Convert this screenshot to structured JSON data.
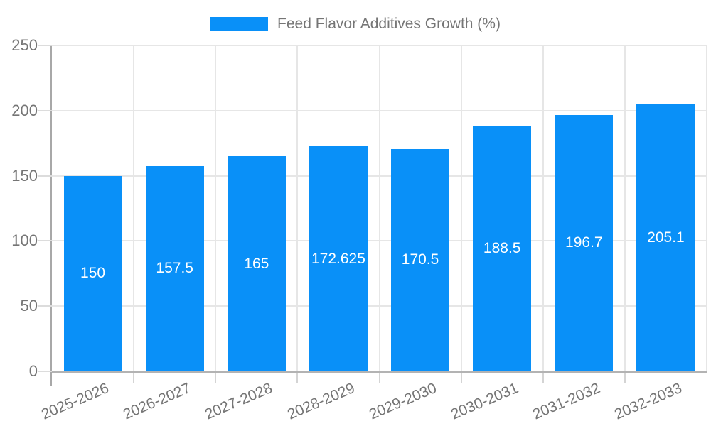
{
  "legend": {
    "label": "Feed Flavor Additives Growth (%)",
    "swatch_color": "#0990f8"
  },
  "chart_data": {
    "type": "bar",
    "title": "Feed Flavor Additives Growth (%)",
    "categories": [
      "2025-2026",
      "2026-2027",
      "2027-2028",
      "2028-2029",
      "2029-2030",
      "2030-2031",
      "2031-2032",
      "2032-2033"
    ],
    "values": [
      150,
      157.5,
      165,
      172.625,
      170.5,
      188.5,
      196.7,
      205.1
    ],
    "value_labels": [
      "150",
      "157.5",
      "165",
      "172.625",
      "170.5",
      "188.5",
      "196.7",
      "205.1"
    ],
    "xlabel": "",
    "ylabel": "",
    "ylim": [
      0,
      250
    ],
    "yticks": [
      0,
      50,
      100,
      150,
      200,
      250
    ],
    "grid": true,
    "legend_position": "top-center",
    "bar_color": "#0990f8",
    "value_label_color": "#ffffff",
    "grid_color": "#e6e6e6",
    "axis_color": "#b3b3b3",
    "tick_label_color": "#757575"
  }
}
